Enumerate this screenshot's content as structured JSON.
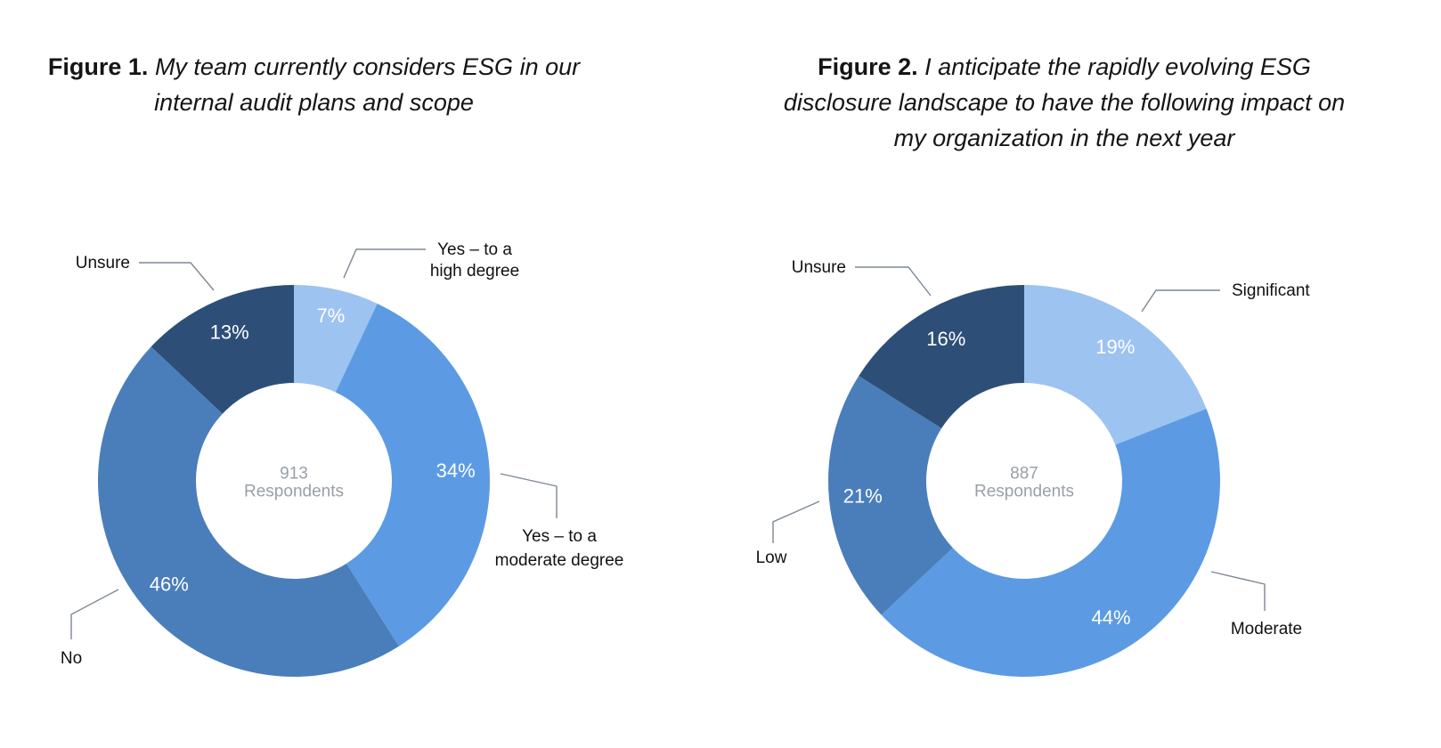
{
  "chart_data": [
    {
      "type": "pie",
      "title_prefix": "Figure 1.",
      "title": "My team currently considers ESG in our internal audit plans and scope",
      "center_value": "913",
      "center_label": "Respondents",
      "slices": [
        {
          "name": "Yes – to a high degree",
          "label_lines": [
            "Yes – to a",
            "high degree"
          ],
          "value": 7,
          "display": "7%",
          "color": "#9dc3f0"
        },
        {
          "name": "Yes – to a moderate degree",
          "label_lines": [
            "Yes – to a",
            "moderate degree"
          ],
          "value": 34,
          "display": "34%",
          "color": "#5c9be3"
        },
        {
          "name": "No",
          "label_lines": [
            "No"
          ],
          "value": 46,
          "display": "46%",
          "color": "#4a7eba"
        },
        {
          "name": "Unsure",
          "label_lines": [
            "Unsure"
          ],
          "value": 13,
          "display": "13%",
          "color": "#2d4f77"
        }
      ]
    },
    {
      "type": "pie",
      "title_prefix": "Figure 2.",
      "title": "I anticipate the rapidly evolving ESG disclosure landscape to have the following impact on my organization in the next year",
      "center_value": "887",
      "center_label": "Respondents",
      "slices": [
        {
          "name": "Significant",
          "label_lines": [
            "Significant"
          ],
          "value": 19,
          "display": "19%",
          "color": "#9dc3f0"
        },
        {
          "name": "Moderate",
          "label_lines": [
            "Moderate"
          ],
          "value": 44,
          "display": "44%",
          "color": "#5c9be3"
        },
        {
          "name": "Low",
          "label_lines": [
            "Low"
          ],
          "value": 21,
          "display": "21%",
          "color": "#4a7eba"
        },
        {
          "name": "Unsure",
          "label_lines": [
            "Unsure"
          ],
          "value": 16,
          "display": "16%",
          "color": "#2d4f77"
        }
      ]
    }
  ]
}
